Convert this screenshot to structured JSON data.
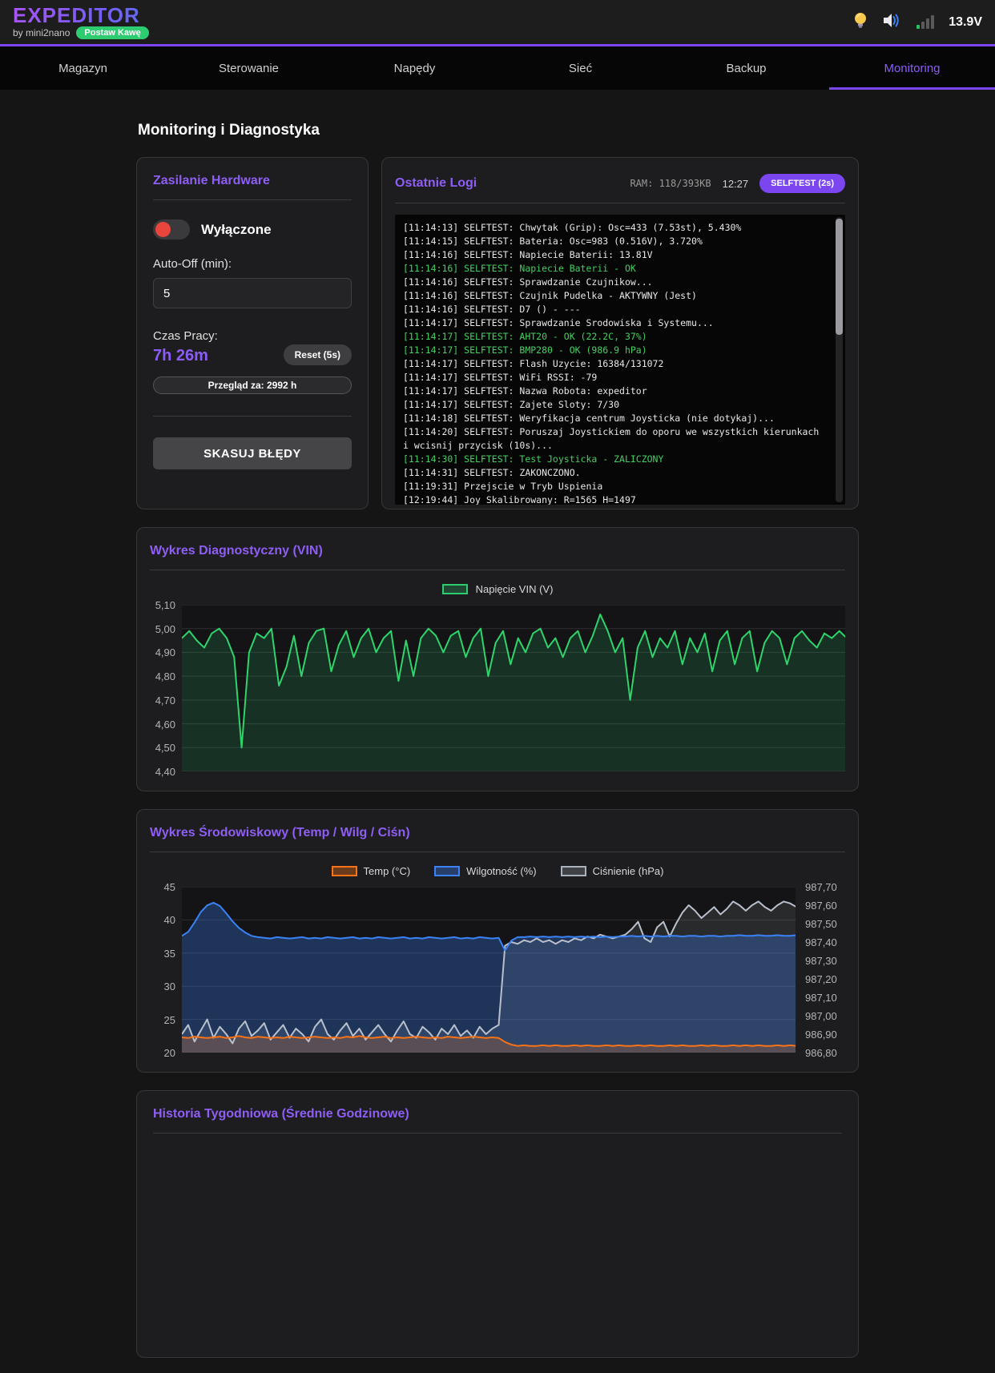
{
  "topbar": {
    "logo": "EXPEDITOR",
    "byline": "by mini2nano",
    "badge": "Postaw Kawę",
    "voltage": "13.9V",
    "icons": [
      "bulb-icon",
      "speaker-icon",
      "signal-bars-icon"
    ]
  },
  "nav": {
    "items": [
      {
        "label": "Magazyn",
        "active": false
      },
      {
        "label": "Sterowanie",
        "active": false
      },
      {
        "label": "Napędy",
        "active": false
      },
      {
        "label": "Sieć",
        "active": false
      },
      {
        "label": "Backup",
        "active": false
      },
      {
        "label": "Monitoring",
        "active": true
      }
    ]
  },
  "page_title": "Monitoring i Diagnostyka",
  "power_panel": {
    "title": "Zasilanie Hardware",
    "toggle_label": "Wyłączone",
    "toggle_state": "off",
    "autooff_label": "Auto-Off (min):",
    "autooff_value": "5",
    "uptime_label": "Czas Pracy:",
    "uptime_value": "7h 26m",
    "reset_button": "Reset (5s)",
    "service_bar": "Przegląd za: 2992 h",
    "clear_errors_button": "SKASUJ BŁĘDY"
  },
  "logs_panel": {
    "title": "Ostatnie Logi",
    "ram": "RAM: 118/393KB",
    "time": "12:27",
    "selftest_button": "SELFTEST (2s)",
    "lines": [
      {
        "text": "[11:14:13] SELFTEST: Chwytak (Grip): Osc=433 (7.53st), 5.430%",
        "ok": false
      },
      {
        "text": "[11:14:15] SELFTEST: Bateria: Osc=983 (0.516V), 3.720%",
        "ok": false
      },
      {
        "text": "[11:14:16] SELFTEST: Napiecie Baterii: 13.81V",
        "ok": false
      },
      {
        "text": "[11:14:16] SELFTEST: Napiecie Baterii - OK",
        "ok": true
      },
      {
        "text": "[11:14:16] SELFTEST: Sprawdzanie Czujnikow...",
        "ok": false
      },
      {
        "text": "[11:14:16] SELFTEST: Czujnik Pudelka - AKTYWNY (Jest)",
        "ok": false
      },
      {
        "text": "[11:14:16] SELFTEST: D7 () - ---",
        "ok": false
      },
      {
        "text": "[11:14:17] SELFTEST: Sprawdzanie Srodowiska i Systemu...",
        "ok": false
      },
      {
        "text": "[11:14:17] SELFTEST: AHT20 - OK (22.2C, 37%)",
        "ok": true
      },
      {
        "text": "[11:14:17] SELFTEST: BMP280 - OK (986.9 hPa)",
        "ok": true
      },
      {
        "text": "[11:14:17] SELFTEST: Flash Uzycie: 16384/131072",
        "ok": false
      },
      {
        "text": "[11:14:17] SELFTEST: WiFi RSSI: -79",
        "ok": false
      },
      {
        "text": "[11:14:17] SELFTEST: Nazwa Robota: expeditor",
        "ok": false
      },
      {
        "text": "[11:14:17] SELFTEST: Zajete Sloty: 7/30",
        "ok": false
      },
      {
        "text": "[11:14:18] SELFTEST: Weryfikacja centrum Joysticka (nie dotykaj)...",
        "ok": false
      },
      {
        "text": "[11:14:20] SELFTEST: Poruszaj Joystickiem do oporu we wszystkich kierunkach i wcisnij przycisk (10s)...",
        "ok": false
      },
      {
        "text": "[11:14:30] SELFTEST: Test Joysticka - ZALICZONY",
        "ok": true
      },
      {
        "text": "[11:14:31] SELFTEST: ZAKONCZONO.",
        "ok": false
      },
      {
        "text": "[11:19:31] Przejscie w Tryb Uspienia",
        "ok": false
      },
      {
        "text": "[12:19:44] Joy Skalibrowany: R=1565 H=1497",
        "ok": false
      }
    ]
  },
  "history_panel": {
    "title": "Historia Tygodniowa (Średnie Godzinowe)"
  },
  "colors": {
    "accent": "#8b5cf6",
    "nav_border": "#7b46f0",
    "ok_green": "#45d061",
    "toggle_off_red": "#e8453c",
    "badge_green": "#2ecc71"
  },
  "chart_data": [
    {
      "type": "line",
      "title": "Wykres Diagnostyczny (VIN)",
      "ylim": [
        4.4,
        5.1
      ],
      "yticks": [
        "5,10",
        "5,00",
        "4,90",
        "4,80",
        "4,70",
        "4,60",
        "4,50",
        "4,40"
      ],
      "grid": true,
      "legend_position": "top",
      "series": [
        {
          "name": "Napięcie VIN (V)",
          "color": "#2fd46b",
          "fill": "rgba(46,204,113,0.16)",
          "values": [
            4.96,
            4.99,
            4.95,
            4.92,
            4.98,
            5.0,
            4.96,
            4.88,
            4.5,
            4.9,
            4.98,
            4.96,
            5.0,
            4.76,
            4.84,
            4.97,
            4.8,
            4.94,
            4.99,
            5.0,
            4.82,
            4.93,
            4.99,
            4.88,
            4.96,
            5.0,
            4.9,
            4.96,
            4.99,
            4.78,
            4.95,
            4.8,
            4.96,
            5.0,
            4.97,
            4.9,
            4.97,
            4.99,
            4.88,
            4.96,
            5.0,
            4.8,
            4.94,
            4.99,
            4.85,
            4.96,
            4.9,
            4.98,
            5.0,
            4.92,
            4.96,
            4.88,
            4.96,
            4.99,
            4.9,
            4.97,
            5.06,
            4.99,
            4.9,
            4.96,
            4.7,
            4.92,
            4.99,
            4.88,
            4.96,
            4.92,
            4.99,
            4.85,
            4.96,
            4.9,
            4.98,
            4.82,
            4.95,
            4.99,
            4.85,
            4.96,
            4.99,
            4.82,
            4.94,
            4.99,
            4.96,
            4.85,
            4.96,
            4.99,
            4.95,
            4.92,
            4.98,
            4.96,
            4.99,
            4.96
          ]
        }
      ]
    },
    {
      "type": "line",
      "title": "Wykres Środowiskowy (Temp / Wilg / Ciśn)",
      "ylim_left": [
        20,
        45
      ],
      "ylim_right": [
        986.8,
        987.7
      ],
      "yticks_left": [
        "45",
        "40",
        "35",
        "30",
        "25",
        "20"
      ],
      "yticks_right": [
        "987,70",
        "987,60",
        "987,50",
        "987,40",
        "987,30",
        "987,20",
        "987,10",
        "987,00",
        "986,90",
        "986,80"
      ],
      "grid": true,
      "legend_position": "top",
      "series": [
        {
          "name": "Temp (°C)",
          "axis": "left",
          "color": "#f97316",
          "fill": "rgba(249,115,22,0.22)",
          "values": [
            22.3,
            22.2,
            22.4,
            22.3,
            22.2,
            22.3,
            22.4,
            22.2,
            22.3,
            22.5,
            22.3,
            22.2,
            22.4,
            22.3,
            22.2,
            22.3,
            22.2,
            22.4,
            22.3,
            22.2,
            22.3,
            22.4,
            22.3,
            22.2,
            22.3,
            22.2,
            22.4,
            22.3,
            22.5,
            22.3,
            22.2,
            22.3,
            22.4,
            22.2,
            22.3,
            22.2,
            22.3,
            22.4,
            22.3,
            22.2,
            22.3,
            22.2,
            22.4,
            22.3,
            22.2,
            22.3,
            22.4,
            22.3,
            22.2,
            22.3,
            22.2,
            21.6,
            21.2,
            21.0,
            21.1,
            21.0,
            21.0,
            21.1,
            21.0,
            21.1,
            21.0,
            21.0,
            21.1,
            21.0,
            21.1,
            21.0,
            21.0,
            21.1,
            21.0,
            21.1,
            21.0,
            21.0,
            21.1,
            21.0,
            21.1,
            21.0,
            21.0,
            21.1,
            21.0,
            21.1,
            21.0,
            21.0,
            21.1,
            21.0,
            21.1,
            21.0,
            21.0,
            21.1,
            21.0,
            21.1,
            21.0,
            21.1,
            21.0,
            21.0,
            21.1,
            21.0,
            21.1,
            21.0,
            21.0,
            21.1
          ]
        },
        {
          "name": "Wilgotność (%)",
          "axis": "left",
          "color": "#3b82f6",
          "fill": "rgba(59,130,246,0.30)",
          "values": [
            37.6,
            38.2,
            39.6,
            41.2,
            42.2,
            42.6,
            42.1,
            41.0,
            39.8,
            38.8,
            38.1,
            37.6,
            37.4,
            37.3,
            37.2,
            37.4,
            37.3,
            37.2,
            37.3,
            37.4,
            37.2,
            37.3,
            37.2,
            37.4,
            37.3,
            37.2,
            37.3,
            37.4,
            37.2,
            37.3,
            37.2,
            37.4,
            37.3,
            37.2,
            37.3,
            37.4,
            37.2,
            37.3,
            37.2,
            37.4,
            37.3,
            37.2,
            37.3,
            37.4,
            37.2,
            37.3,
            37.2,
            37.4,
            37.3,
            37.2,
            37.3,
            35.4,
            36.9,
            37.4,
            37.4,
            37.5,
            37.4,
            37.5,
            37.4,
            37.5,
            37.4,
            37.5,
            37.4,
            37.5,
            37.4,
            37.5,
            37.4,
            37.5,
            37.4,
            37.5,
            37.5,
            37.6,
            37.5,
            37.6,
            37.5,
            37.6,
            37.5,
            37.6,
            37.6,
            37.5,
            37.6,
            37.6,
            37.5,
            37.6,
            37.6,
            37.5,
            37.6,
            37.6,
            37.7,
            37.6,
            37.6,
            37.7,
            37.6,
            37.6,
            37.7,
            37.6,
            37.6,
            37.7,
            37.6,
            37.6
          ]
        },
        {
          "name": "Ciśnienie (hPa)",
          "axis": "right",
          "color": "#b9c0cc",
          "fill": "rgba(170,175,185,0.14)",
          "values": [
            986.9,
            986.95,
            986.86,
            986.92,
            986.98,
            986.88,
            986.94,
            986.9,
            986.85,
            986.93,
            986.97,
            986.89,
            986.92,
            986.96,
            986.87,
            986.91,
            986.95,
            986.88,
            986.93,
            986.9,
            986.86,
            986.94,
            986.98,
            986.9,
            986.87,
            986.92,
            986.96,
            986.89,
            986.93,
            986.87,
            986.91,
            986.95,
            986.9,
            986.86,
            986.92,
            986.97,
            986.9,
            986.88,
            986.94,
            986.91,
            986.87,
            986.93,
            986.9,
            986.95,
            986.89,
            986.92,
            986.88,
            986.94,
            986.9,
            986.93,
            986.95,
            987.38,
            987.4,
            987.39,
            987.41,
            987.4,
            987.42,
            987.4,
            987.41,
            987.39,
            987.41,
            987.4,
            987.42,
            987.41,
            987.43,
            987.42,
            987.44,
            987.43,
            987.42,
            987.43,
            987.44,
            987.47,
            987.51,
            987.42,
            987.4,
            987.48,
            987.51,
            987.43,
            987.5,
            987.56,
            987.6,
            987.57,
            987.53,
            987.56,
            987.59,
            987.55,
            987.58,
            987.62,
            987.6,
            987.57,
            987.6,
            987.62,
            987.59,
            987.57,
            987.6,
            987.62,
            987.61,
            987.59,
            987.61,
            987.6
          ]
        }
      ]
    }
  ]
}
